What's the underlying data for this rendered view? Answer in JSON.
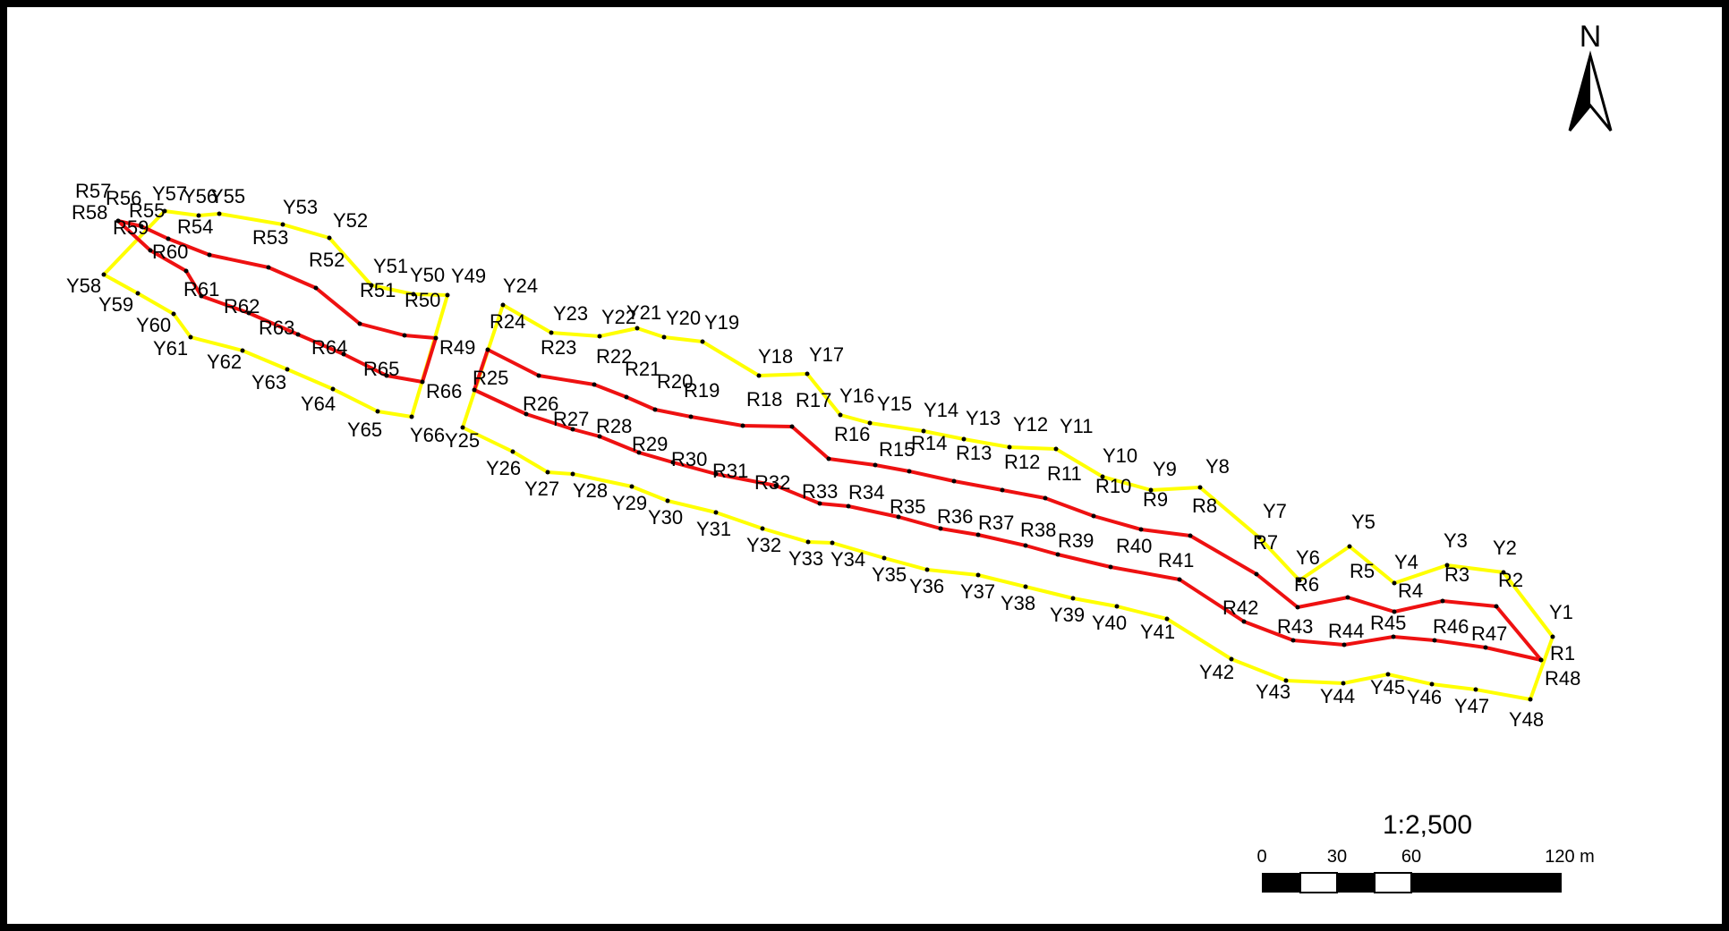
{
  "map": {
    "north_label": "N",
    "scale_ratio": "1:2,500",
    "scale_ticks": [
      "0",
      "30",
      "60",
      "120 m"
    ],
    "colors": {
      "red_line": "#ee1111",
      "yellow_line": "#ffff00",
      "frame": "#000000",
      "background": "#ffffff"
    },
    "red_points": [
      "R1",
      "R2",
      "R3",
      "R4",
      "R5",
      "R6",
      "R7",
      "R8",
      "R9",
      "R10",
      "R11",
      "R12",
      "R13",
      "R14",
      "R15",
      "R16",
      "R17",
      "R18",
      "R19",
      "R20",
      "R21",
      "R22",
      "R23",
      "R24",
      "R25",
      "R26",
      "R27",
      "R28",
      "R29",
      "R30",
      "R31",
      "R32",
      "R33",
      "R34",
      "R35",
      "R36",
      "R37",
      "R38",
      "R39",
      "R40",
      "R41",
      "R42",
      "R43",
      "R44",
      "R45",
      "R46",
      "R47",
      "R48",
      "R49",
      "R50",
      "R51",
      "R52",
      "R53",
      "R54",
      "R55",
      "R56",
      "R57",
      "R58",
      "R59",
      "R60",
      "R61",
      "R62",
      "R63",
      "R64",
      "R65",
      "R66"
    ],
    "yellow_points": [
      "Y1",
      "Y2",
      "Y3",
      "Y4",
      "Y5",
      "Y6",
      "Y7",
      "Y8",
      "Y9",
      "Y10",
      "Y11",
      "Y12",
      "Y13",
      "Y14",
      "Y15",
      "Y16",
      "Y17",
      "Y18",
      "Y19",
      "Y20",
      "Y21",
      "Y22",
      "Y23",
      "Y24",
      "Y25",
      "Y26",
      "Y27",
      "Y28",
      "Y29",
      "Y30",
      "Y31",
      "Y32",
      "Y33",
      "Y34",
      "Y35",
      "Y36",
      "Y37",
      "Y38",
      "Y39",
      "Y40",
      "Y41",
      "Y42",
      "Y43",
      "Y44",
      "Y45",
      "Y46",
      "Y47",
      "Y48",
      "Y49",
      "Y50",
      "Y51",
      "Y52",
      "Y53",
      "Y55",
      "Y56",
      "Y57",
      "Y58",
      "Y59",
      "Y60",
      "Y61",
      "Y62",
      "Y63",
      "Y64",
      "Y65",
      "Y66"
    ]
  }
}
